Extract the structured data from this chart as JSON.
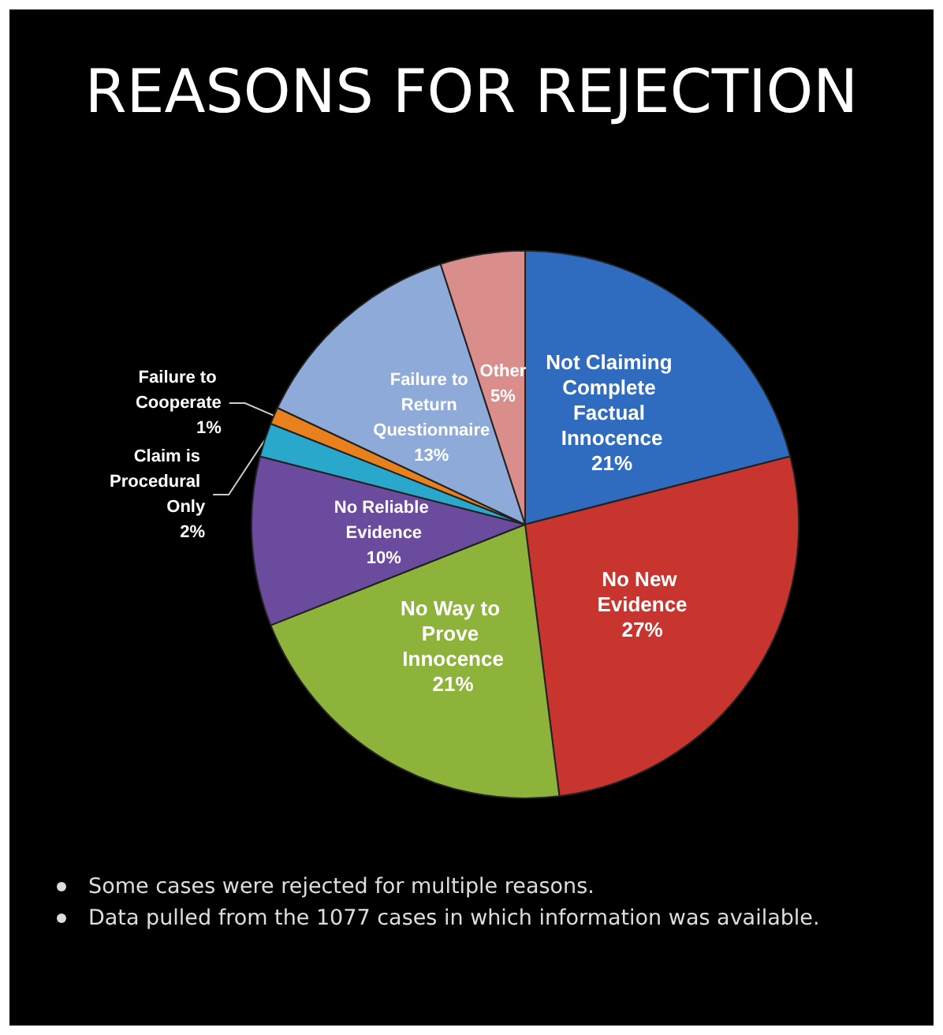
{
  "chart_data": {
    "type": "pie",
    "title": "REASONS FOR REJECTION",
    "categories": [
      "Not Claiming Complete Factual Innocence",
      "No New Evidence",
      "No Way to Prove Innocence",
      "No Reliable Evidence",
      "Claim is Procedural Only",
      "Failure to Cooperate",
      "Failure to Return Questionnaire",
      "Other"
    ],
    "values": [
      21,
      27,
      21,
      10,
      2,
      1,
      13,
      5
    ],
    "value_labels": [
      "21%",
      "27%",
      "21%",
      "10%",
      "2%",
      "1%",
      "13%",
      "5%"
    ],
    "colors": [
      "#2f6cc0",
      "#c8352f",
      "#8db33b",
      "#6b4b9e",
      "#2aa8cb",
      "#e8801e",
      "#8eaad9",
      "#d98e8c"
    ],
    "annotations": [
      "Some cases were rejected for multiple reasons.",
      "Data pulled from the 1077 cases in which information was available."
    ]
  }
}
